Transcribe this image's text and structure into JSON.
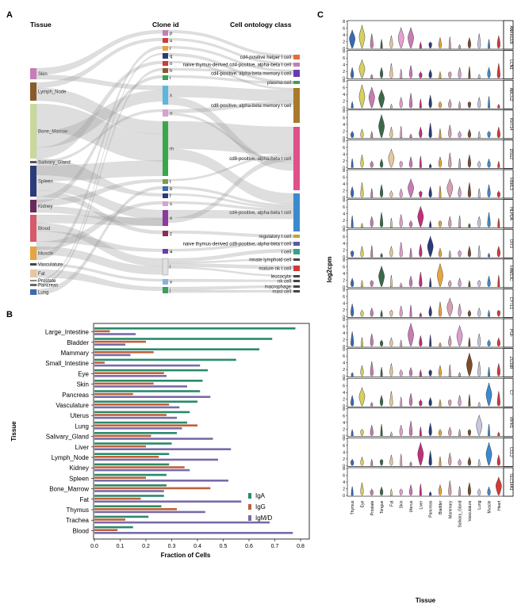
{
  "panels": {
    "a": "A",
    "b": "B",
    "c": "C"
  },
  "sankey": {
    "headers": {
      "tissue": "Tissue",
      "clone": "Clone id",
      "onto": "Cell ontology class"
    },
    "tissues": [
      {
        "name": "Skin",
        "color": "#c77cb6"
      },
      {
        "name": "Lymph_Node",
        "color": "#8b5a2b"
      },
      {
        "name": "Bone_Marrow",
        "color": "#c9d99a"
      },
      {
        "name": "Salivary_Gland",
        "color": "#555555"
      },
      {
        "name": "Spleen",
        "color": "#2b3a7a"
      },
      {
        "name": "Kidney",
        "color": "#6b2a5c"
      },
      {
        "name": "Blood",
        "color": "#d65a6a"
      },
      {
        "name": "Muscle",
        "color": "#e8a440"
      },
      {
        "name": "Vasculature",
        "color": "#444444"
      },
      {
        "name": "Fat",
        "color": "#e8c7a0"
      },
      {
        "name": "Prostate",
        "color": "#888888"
      },
      {
        "name": "Pancreas",
        "color": "#666666"
      },
      {
        "name": "Lung",
        "color": "#3a6ab0"
      }
    ],
    "clones": [
      {
        "id": "p",
        "color": "#c77cb6"
      },
      {
        "id": "u",
        "color": "#d13a3a"
      },
      {
        "id": "r",
        "color": "#e8a440"
      },
      {
        "id": "q",
        "color": "#2b3a7a"
      },
      {
        "id": "n",
        "color": "#d13a3a"
      },
      {
        "id": "h",
        "color": "#8b5a2b"
      },
      {
        "id": "i",
        "color": "#3aa05a"
      },
      {
        "id": "x",
        "color": "#5ab8e0"
      },
      {
        "id": "o",
        "color": "#d8a0d0"
      },
      {
        "id": "m",
        "color": "#3aa84a"
      },
      {
        "id": "t",
        "color": "#7aa040"
      },
      {
        "id": "b",
        "color": "#3a6ab0"
      },
      {
        "id": "f",
        "color": "#2b3a7a"
      },
      {
        "id": "s",
        "color": "#d8a0d0"
      },
      {
        "id": "e",
        "color": "#8a3aa0"
      },
      {
        "id": "z",
        "color": "#8b2a5c"
      },
      {
        "id": "a",
        "color": "#6a3ab0"
      },
      {
        "id": "l",
        "color": "#e0e0e0"
      },
      {
        "id": "v",
        "color": "#8ab0e0"
      },
      {
        "id": "j",
        "color": "#3aa05a"
      }
    ],
    "ontology": [
      {
        "name": "cd4-positive helper t cell",
        "color": "#e86a3a"
      },
      {
        "name": "naive thymus-derived cd4-positive, alpha-beta t cell",
        "color": "#c77cb6"
      },
      {
        "name": "cd4-positive, alpha-beta memory t cell",
        "color": "#6a3ab0"
      },
      {
        "name": "plasma cell",
        "color": "#3aa05a"
      },
      {
        "name": "cd8-positive, alpha-beta memory t cell",
        "color": "#a87a2a"
      },
      {
        "name": "cd8-positive, alpha-beta t cell",
        "color": "#e0508a"
      },
      {
        "name": "cd4-positive, alpha-beta t cell",
        "color": "#3a8ad0"
      },
      {
        "name": "regulatory t cell",
        "color": "#c9a030"
      },
      {
        "name": "naive thymus-derived cd8-positive, alpha-beta t cell",
        "color": "#5a5aa0"
      },
      {
        "name": "t cell",
        "color": "#3aa08a"
      },
      {
        "name": "innate lymphoid cell",
        "color": "#444444"
      },
      {
        "name": "mature nk t cell",
        "color": "#d13a3a"
      },
      {
        "name": "leucocyte",
        "color": "#444444"
      },
      {
        "name": "nk cell",
        "color": "#444444"
      },
      {
        "name": "macrophage",
        "color": "#444444"
      },
      {
        "name": "mast cell",
        "color": "#444444"
      }
    ]
  },
  "chart_data": [
    {
      "type": "bar",
      "orientation": "horizontal",
      "ylabel": "Tissue",
      "xlabel": "Fraction of Cells",
      "xlim": [
        0,
        0.8
      ],
      "xticks": [
        "0.0",
        "0.1",
        "0.2",
        "0.3",
        "0.4",
        "0.5",
        "0.6",
        "0.7",
        "0.8"
      ],
      "categories": [
        "Large_Intestine",
        "Bladder",
        "Mammary",
        "Small_Intestine",
        "Eye",
        "Skin",
        "Pancreas",
        "Vasculature",
        "Uterus",
        "Lung",
        "Salivary_Gland",
        "Liver",
        "Lymph_Node",
        "Kidney",
        "Spleen",
        "Bone_Marrow",
        "Fat",
        "Thymus",
        "Trachea",
        "Blood"
      ],
      "series": [
        {
          "name": "IgA",
          "color": "#2a8a6a",
          "values": [
            0.78,
            0.69,
            0.64,
            0.55,
            0.44,
            0.42,
            0.41,
            0.4,
            0.37,
            0.36,
            0.32,
            0.3,
            0.29,
            0.29,
            0.28,
            0.28,
            0.27,
            0.26,
            0.21,
            0.15
          ]
        },
        {
          "name": "IgG",
          "color": "#c0603a",
          "values": [
            0.06,
            0.2,
            0.23,
            0.04,
            0.27,
            0.23,
            0.15,
            0.29,
            0.28,
            0.4,
            0.22,
            0.2,
            0.25,
            0.35,
            0.2,
            0.45,
            0.18,
            0.32,
            0.12,
            0.09
          ]
        },
        {
          "name": "IgM/D",
          "color": "#7a6aa8",
          "values": [
            0.16,
            0.12,
            0.14,
            0.41,
            0.28,
            0.36,
            0.45,
            0.33,
            0.32,
            0.34,
            0.46,
            0.53,
            0.48,
            0.37,
            0.52,
            0.27,
            0.57,
            0.43,
            0.68,
            0.77
          ]
        }
      ]
    },
    {
      "type": "violin",
      "ylabel": "log2cpm",
      "xlabel": "Tissue",
      "yticks": [
        "0",
        "2",
        "4",
        "6",
        "8"
      ],
      "tissues": [
        "Thymus",
        "Eye",
        "Prostate",
        "Tongue",
        "Fat",
        "Skin",
        "Uterus",
        "Liver",
        "Pancreas",
        "Bladder",
        "Mammary",
        "Salivary_Gland",
        "Vasculature",
        "Lung",
        "Muscle",
        "Heart"
      ],
      "tissue_colors": [
        "#3a6ab0",
        "#d8d060",
        "#c77cb6",
        "#3a6a4a",
        "#e8c7a0",
        "#e8a0d0",
        "#c77cb6",
        "#c0307a",
        "#2b3a7a",
        "#e8a440",
        "#d8a0b0",
        "#d8a0d0",
        "#7a4a2a",
        "#c7c7e0",
        "#3a8ad0",
        "#d13a3a"
      ],
      "genes": [
        "ANKRD28",
        "LCN1",
        "ABCG2",
        "KRT14",
        "DSG2",
        "FBRL3",
        "HLPDA",
        "OIT3",
        "FAM13C",
        "CYTL1",
        "PGF",
        "ZG16B",
        "C7",
        "VIPR1",
        "CCL2",
        "SLC14A1"
      ],
      "high": [
        [
          0,
          1,
          5,
          6
        ],
        [
          1
        ],
        [
          1,
          2,
          3
        ],
        [
          3
        ],
        [
          4
        ],
        [
          6,
          10
        ],
        [
          7
        ],
        [
          8
        ],
        [
          9,
          3
        ],
        [
          10
        ],
        [
          6,
          11
        ],
        [
          12
        ],
        [
          1,
          14
        ],
        [
          13
        ],
        [
          7,
          14
        ],
        [
          15
        ]
      ]
    }
  ]
}
